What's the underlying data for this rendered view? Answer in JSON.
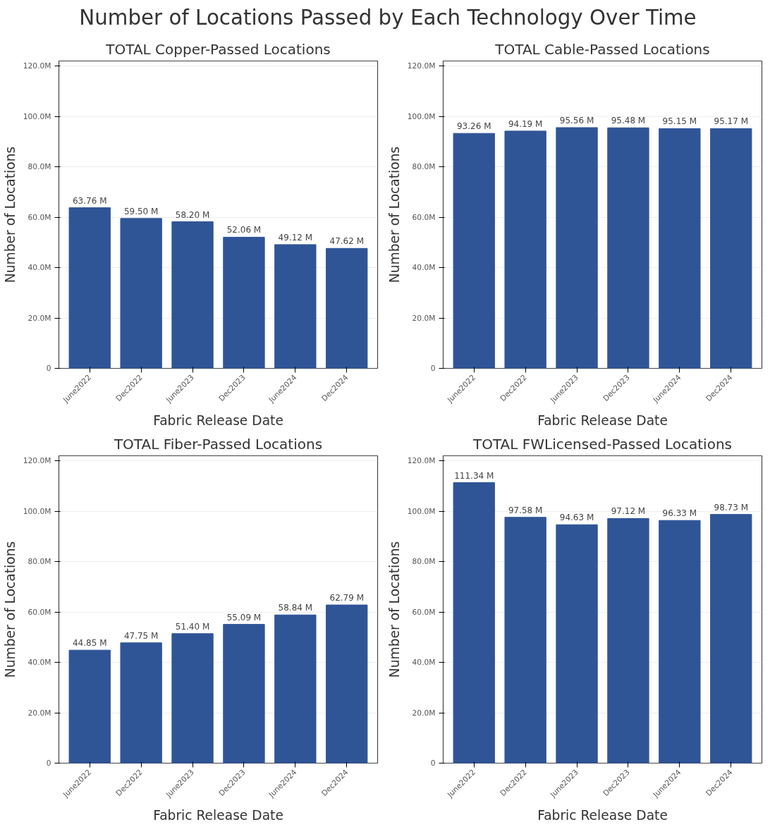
{
  "chart_data": [
    {
      "type": "bar",
      "title": "TOTAL Copper-Passed Locations",
      "annotations": [
        "Number of Locations Passed by Each Technology Over Time"
      ],
      "xlabel": "Fabric Release Date",
      "ylabel": "Number of Locations",
      "categories": [
        "June2022",
        "Dec2022",
        "June2023",
        "Dec2023",
        "June2024",
        "Dec2024"
      ],
      "color": "#2f5597",
      "values": [
        63.76,
        59.5,
        58.2,
        52.06,
        49.12,
        47.62
      ],
      "value_labels": [
        "63.76 M",
        "59.50 M",
        "58.20 M",
        "52.06 M",
        "49.12 M",
        "47.62 M"
      ],
      "ylim": [
        0,
        122
      ],
      "yticks": [
        0,
        {
          "value": 20,
          "label": "20.0M"
        },
        {
          "value": 40,
          "label": "40.0M"
        },
        {
          "value": 60,
          "label": "60.0M"
        },
        {
          "value": 80,
          "label": "80.0M"
        },
        {
          "value": 100,
          "label": "100.0M"
        },
        {
          "value": 120,
          "label": "120.0M"
        }
      ],
      "grid": "y"
    },
    {
      "type": "bar",
      "title": "TOTAL Cable-Passed Locations",
      "xlabel": "Fabric Release Date",
      "ylabel": "Number of Locations",
      "categories": [
        "June2022",
        "Dec2022",
        "June2023",
        "Dec2023",
        "June2024",
        "Dec2024"
      ],
      "color": "#2f5597",
      "values": [
        93.26,
        94.19,
        95.56,
        95.48,
        95.15,
        95.17
      ],
      "value_labels": [
        "93.26 M",
        "94.19 M",
        "95.56 M",
        "95.48 M",
        "95.15 M",
        "95.17 M"
      ],
      "ylim": [
        0,
        122
      ],
      "yticks": [
        0,
        {
          "value": 20,
          "label": "20.0M"
        },
        {
          "value": 40,
          "label": "40.0M"
        },
        {
          "value": 60,
          "label": "60.0M"
        },
        {
          "value": 80,
          "label": "80.0M"
        },
        {
          "value": 100,
          "label": "100.0M"
        },
        {
          "value": 120,
          "label": "120.0M"
        }
      ],
      "grid": "y"
    },
    {
      "type": "bar",
      "title": "TOTAL Fiber-Passed Locations",
      "xlabel": "Fabric Release Date",
      "ylabel": "Number of Locations",
      "categories": [
        "June2022",
        "Dec2022",
        "June2023",
        "Dec2023",
        "June2024",
        "Dec2024"
      ],
      "color": "#2f5597",
      "values": [
        44.85,
        47.75,
        51.4,
        55.09,
        58.84,
        62.79
      ],
      "value_labels": [
        "44.85 M",
        "47.75 M",
        "51.40 M",
        "55.09 M",
        "58.84 M",
        "62.79 M"
      ],
      "ylim": [
        0,
        122
      ],
      "yticks": [
        0,
        {
          "value": 20,
          "label": "20.0M"
        },
        {
          "value": 40,
          "label": "40.0M"
        },
        {
          "value": 60,
          "label": "60.0M"
        },
        {
          "value": 80,
          "label": "80.0M"
        },
        {
          "value": 100,
          "label": "100.0M"
        },
        {
          "value": 120,
          "label": "120.0M"
        }
      ],
      "grid": "y"
    },
    {
      "type": "bar",
      "title": "TOTAL FWLicensed-Passed Locations",
      "xlabel": "Fabric Release Date",
      "ylabel": "Number of Locations",
      "categories": [
        "June2022",
        "Dec2022",
        "June2023",
        "Dec2023",
        "June2024",
        "Dec2024"
      ],
      "color": "#2f5597",
      "values": [
        111.34,
        97.58,
        94.63,
        97.12,
        96.33,
        98.73
      ],
      "value_labels": [
        "111.34 M",
        "97.58 M",
        "94.63 M",
        "97.12 M",
        "96.33 M",
        "98.73 M"
      ],
      "ylim": [
        0,
        122
      ],
      "yticks": [
        0,
        {
          "value": 20,
          "label": "20.0M"
        },
        {
          "value": 40,
          "label": "40.0M"
        },
        {
          "value": 60,
          "label": "60.0M"
        },
        {
          "value": 80,
          "label": "80.0M"
        },
        {
          "value": 100,
          "label": "100.0M"
        },
        {
          "value": 120,
          "label": "120.0M"
        }
      ],
      "grid": "y"
    }
  ]
}
